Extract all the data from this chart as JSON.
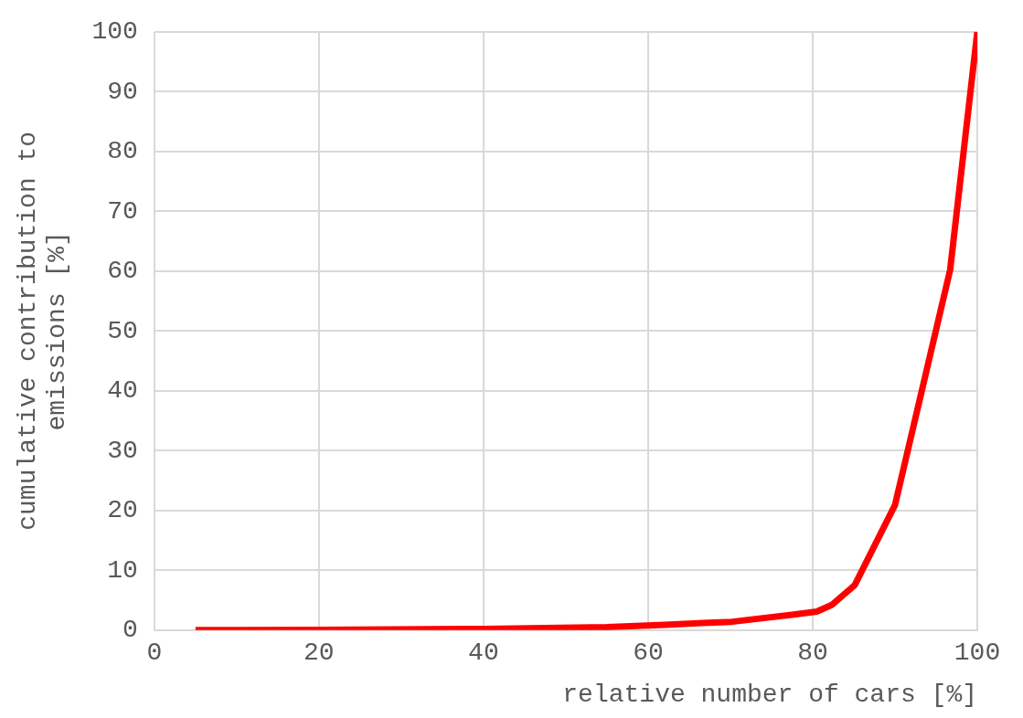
{
  "chart_data": {
    "type": "line",
    "xlabel": "relative number of cars [%]",
    "ylabel": "cumulative contribution to emissions [%]",
    "x": [
      5,
      20,
      40,
      55,
      62,
      70.2,
      77.7,
      80.5,
      82.3,
      85.1,
      90,
      96.7,
      100
    ],
    "series": [
      {
        "color": "#ff0000",
        "values": [
          0,
          0.05,
          0.2,
          0.5,
          0.9,
          1.4,
          2.6,
          3.1,
          4.2,
          7.5,
          20.9,
          60.2,
          100
        ]
      }
    ],
    "xlim": [
      0,
      100
    ],
    "xticks": [
      0,
      20,
      40,
      60,
      80,
      100
    ],
    "ylim": [
      0,
      100
    ],
    "yticks": [
      0,
      10,
      20,
      30,
      40,
      50,
      60,
      70,
      80,
      90,
      100
    ],
    "grid": true,
    "marker": "none",
    "line_style": "solid"
  }
}
